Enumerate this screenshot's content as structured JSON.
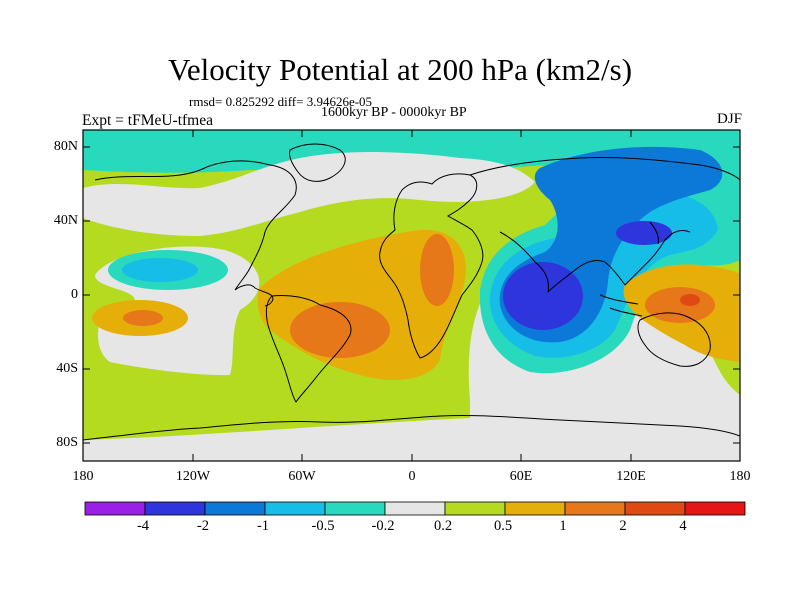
{
  "title": "Velocity Potential at 200 hPa (km2/s)",
  "stats": "rmsd= 0.825292 diff= 3.94626e-05",
  "left_label": "Expt = tFMeU-tfmea",
  "center_label": "1600kyr BP - 0000kyr BP",
  "right_label": "DJF",
  "lat_ticks": [
    "80N",
    "40N",
    "0",
    "40S",
    "80S"
  ],
  "lon_ticks": [
    "180",
    "120W",
    "60W",
    "0",
    "60E",
    "120E",
    "180"
  ],
  "colorbar": {
    "labels": [
      "-4",
      "-2",
      "-1",
      "-0.5",
      "-0.2",
      "0.2",
      "0.5",
      "1",
      "2",
      "4"
    ],
    "colors": [
      "#9a20e8",
      "#2f35dc",
      "#0c79d9",
      "#16bde6",
      "#29d9bd",
      "#e6e6e6",
      "#b5db20",
      "#e6ae08",
      "#e6781a",
      "#e04a12",
      "#e61616"
    ]
  },
  "map_data": {
    "variable": "Velocity Potential at 200 hPa",
    "units": "km2/s",
    "lon_range": [
      -180,
      180
    ],
    "lat_range": [
      -90,
      90
    ]
  }
}
